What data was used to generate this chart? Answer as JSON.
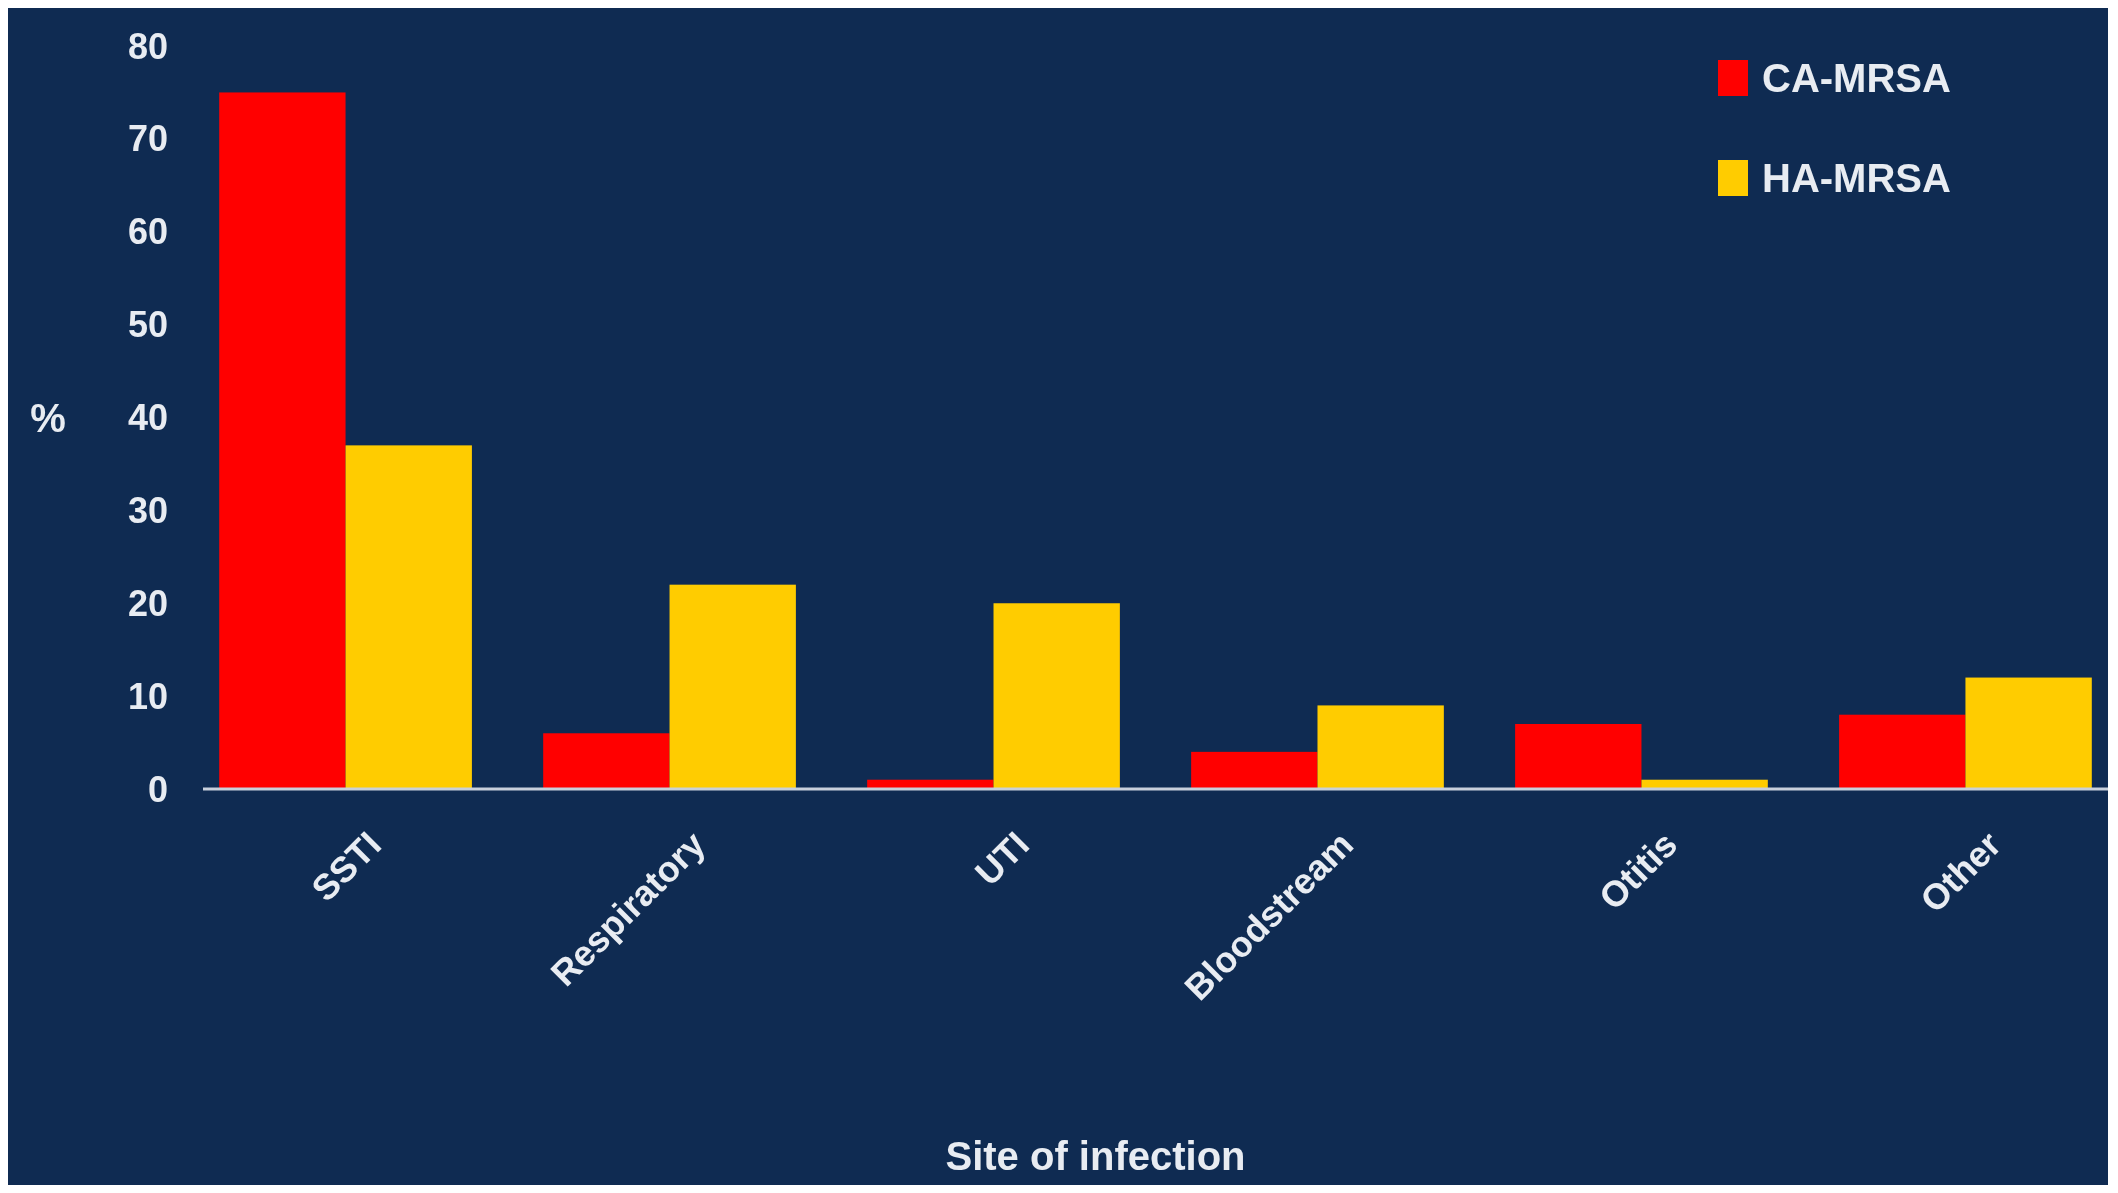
{
  "chart_data": {
    "type": "bar",
    "xlabel": "Site of infection",
    "ylabel": "%",
    "categories": [
      "SSTI",
      "Respiratory",
      "UTI",
      "Bloodstream",
      "Otitis",
      "Other"
    ],
    "series": [
      {
        "name": "CA-MRSA",
        "color": "#ff0000",
        "values": [
          75,
          6,
          1,
          4,
          7,
          8
        ]
      },
      {
        "name": "HA-MRSA",
        "color": "#ffcc00",
        "values": [
          37,
          22,
          20,
          9,
          1,
          12
        ]
      }
    ],
    "ylim": [
      0,
      80
    ],
    "yticks": [
      0,
      10,
      20,
      30,
      40,
      50,
      60,
      70,
      80
    ],
    "grid": false,
    "legend": "top right"
  }
}
